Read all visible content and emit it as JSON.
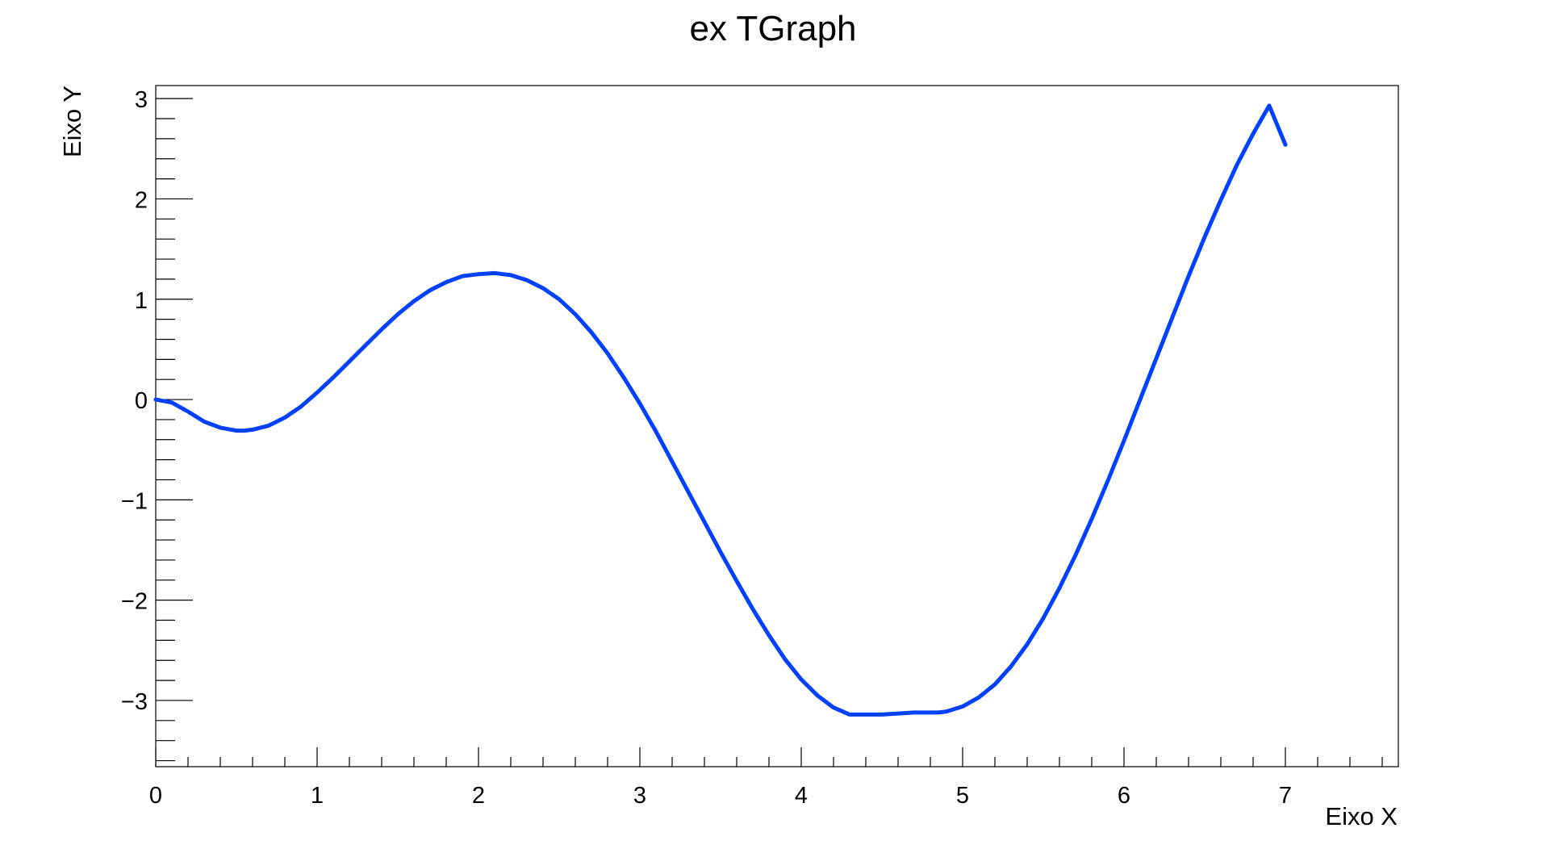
{
  "chart_data": {
    "type": "line",
    "title": "ex TGraph",
    "xlabel": "Eixo X",
    "ylabel": "Eixo Y",
    "xlim": [
      0,
      7.7
    ],
    "ylim": [
      -3.66,
      3.13
    ],
    "x_ticks": [
      0,
      1,
      2,
      3,
      4,
      5,
      6,
      7
    ],
    "x_tick_labels": [
      "0",
      "1",
      "2",
      "3",
      "4",
      "5",
      "6",
      "7"
    ],
    "y_ticks": [
      -3,
      -2,
      -1,
      0,
      1,
      2,
      3
    ],
    "y_tick_labels": [
      "−3",
      "−2",
      "−1",
      "0",
      "1",
      "2",
      "3"
    ],
    "grid": false,
    "series": [
      {
        "color": "#0040ff",
        "x": [
          0,
          0.1,
          0.2,
          0.3,
          0.4,
          0.5,
          0.55,
          0.6,
          0.7,
          0.8,
          0.9,
          1.0,
          1.1,
          1.2,
          1.3,
          1.4,
          1.5,
          1.6,
          1.7,
          1.8,
          1.9,
          2.0,
          2.1,
          2.15,
          2.2,
          2.3,
          2.4,
          2.5,
          2.6,
          2.7,
          2.8,
          2.9,
          3.0,
          3.1,
          3.2,
          3.3,
          3.4,
          3.5,
          3.6,
          3.7,
          3.8,
          3.9,
          4.0,
          4.1,
          4.2,
          4.3,
          4.4,
          4.5,
          4.6,
          4.7,
          4.8,
          4.85,
          4.9,
          5.0,
          5.1,
          5.2,
          5.3,
          5.4,
          5.5,
          5.6,
          5.7,
          5.8,
          5.9,
          6.0,
          6.1,
          6.2,
          6.3,
          6.4,
          6.5,
          6.6,
          6.7,
          6.8,
          6.9,
          7.0
        ],
        "y": [
          0,
          -0.03,
          -0.12,
          -0.22,
          -0.28,
          -0.31,
          -0.31,
          -0.3,
          -0.26,
          -0.18,
          -0.07,
          0.07,
          0.22,
          0.38,
          0.54,
          0.7,
          0.85,
          0.98,
          1.09,
          1.17,
          1.23,
          1.25,
          1.26,
          1.25,
          1.24,
          1.19,
          1.11,
          1.0,
          0.85,
          0.67,
          0.46,
          0.22,
          -0.04,
          -0.32,
          -0.62,
          -0.92,
          -1.22,
          -1.52,
          -1.81,
          -2.09,
          -2.35,
          -2.59,
          -2.79,
          -2.95,
          -3.07,
          -3.14,
          -3.14,
          -3.14,
          -3.13,
          -3.12,
          -3.12,
          -3.12,
          -3.11,
          -3.06,
          -2.97,
          -2.84,
          -2.66,
          -2.44,
          -2.18,
          -1.88,
          -1.55,
          -1.19,
          -0.81,
          -0.41,
          0.0,
          0.41,
          0.82,
          1.23,
          1.62,
          1.99,
          2.34,
          2.65,
          2.93,
          2.54
        ]
      }
    ]
  }
}
